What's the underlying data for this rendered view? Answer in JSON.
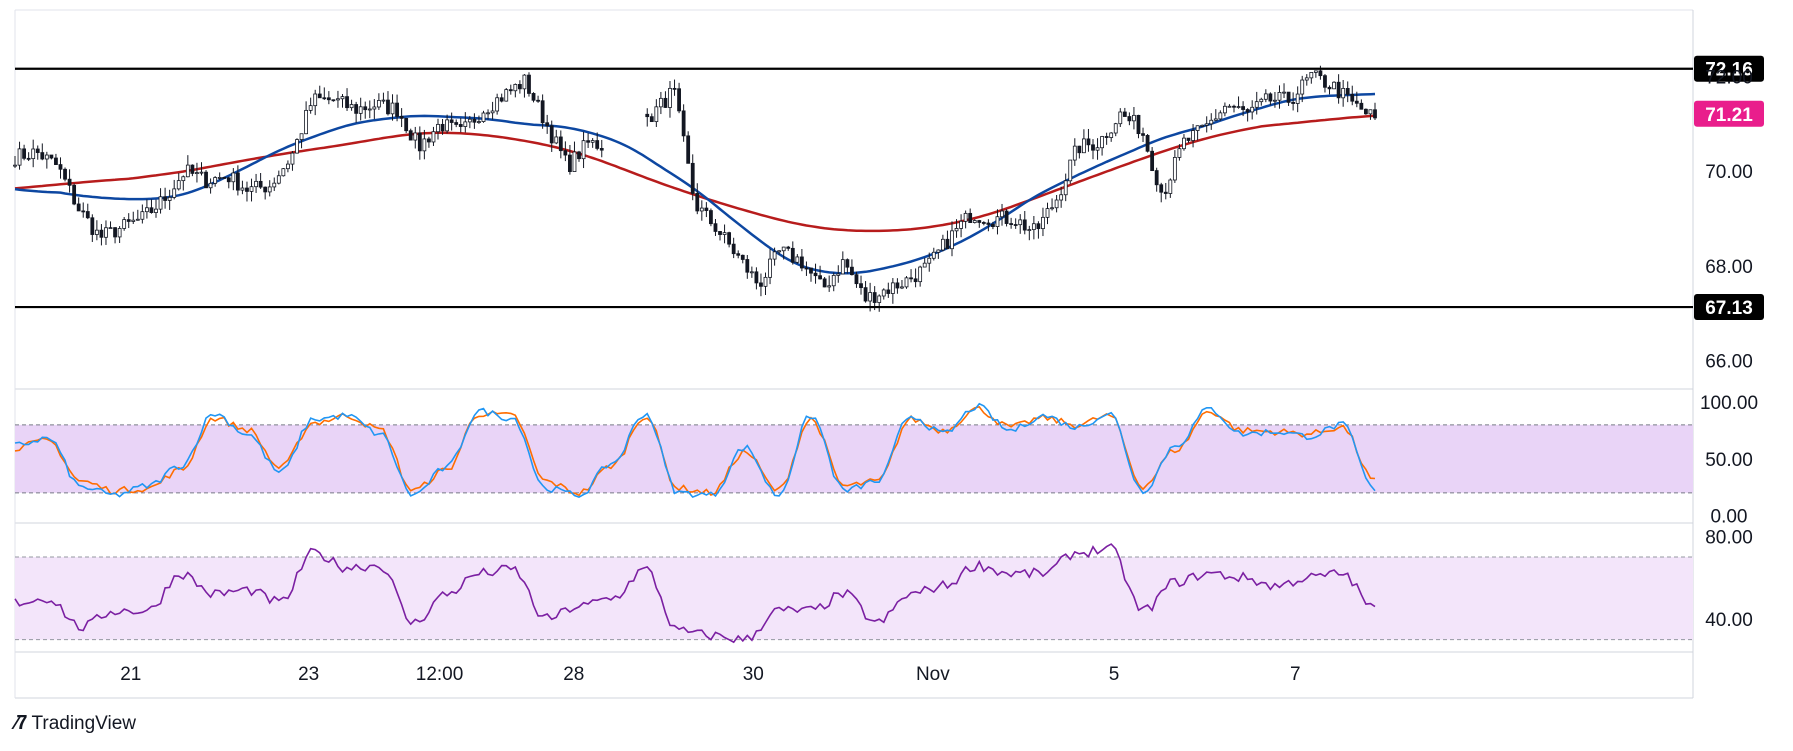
{
  "brand": {
    "logo_icon": "tradingview-logo-icon",
    "name": "TradingView"
  },
  "colors": {
    "candle": "#131722",
    "sma_fast": "#0d47a1",
    "sma_slow": "#b71c1c",
    "level_line": "#000000",
    "current_price_bg": "#e91e8c",
    "stoch_k": "#2196f3",
    "stoch_d": "#ff6d00",
    "stoch_band": "#e9d4f7",
    "rsi_line": "#7b1fa2",
    "rsi_band": "#f3e5fa"
  },
  "chart_data": [
    {
      "type": "candlestick",
      "panel": "price",
      "y_ticks": [
        "72.00",
        "70.00",
        "68.00",
        "66.00"
      ],
      "x_ticks": [
        "21",
        "23",
        "12:00",
        "28",
        "30",
        "Nov",
        "5",
        "7"
      ],
      "ylim": [
        65.4,
        73.4
      ],
      "levels": [
        {
          "label": "72.16",
          "value": 72.16
        },
        {
          "label": "67.13",
          "value": 67.13
        }
      ],
      "current_price": {
        "label": "71.21",
        "value": 71.21
      },
      "close_path": [
        70.3,
        70.4,
        70.1,
        69.2,
        68.6,
        68.8,
        69.0,
        69.4,
        70.0,
        69.8,
        69.9,
        69.6,
        69.7,
        70.3,
        71.5,
        71.5,
        71.3,
        71.4,
        71.3,
        70.5,
        71.0,
        70.8,
        71.3,
        71.6,
        71.9,
        71.0,
        70.1,
        70.6,
        70.5,
        70.4,
        71.2,
        71.7,
        69.3,
        68.8,
        68.2,
        67.6,
        68.3,
        68.1,
        67.5,
        68.1,
        67.3,
        67.5,
        67.7,
        68.0,
        68.6,
        69.1,
        69.0,
        69.0,
        68.7,
        69.4,
        70.5,
        70.6,
        71.2,
        70.9,
        69.5,
        70.6,
        70.9,
        71.4,
        71.2,
        71.5,
        71.5,
        72.0,
        71.8,
        71.4,
        71.1
      ]
    },
    {
      "type": "line",
      "panel": "stochastic",
      "y_ticks": [
        "100.00",
        "50.00",
        "0.00"
      ],
      "ylim": [
        -4,
        109
      ],
      "band": [
        20,
        80
      ],
      "series": [
        {
          "key": "k",
          "values": [
            62,
            68,
            25,
            18,
            26,
            44,
            90,
            72,
            38,
            85,
            88,
            72,
            18,
            42,
            92,
            86,
            24,
            18,
            46,
            90,
            20,
            18,
            60,
            18,
            88,
            22,
            30,
            88,
            72,
            96,
            75,
            88,
            78,
            90,
            22,
            62,
            94,
            72,
            74,
            70,
            80,
            22
          ]
        },
        {
          "key": "d",
          "values": [
            60,
            66,
            30,
            22,
            24,
            40,
            86,
            76,
            42,
            82,
            88,
            76,
            22,
            40,
            90,
            88,
            30,
            20,
            44,
            88,
            24,
            20,
            56,
            22,
            85,
            26,
            30,
            85,
            75,
            94,
            78,
            86,
            80,
            88,
            26,
            58,
            92,
            75,
            74,
            72,
            78,
            30
          ]
        }
      ]
    },
    {
      "type": "line",
      "panel": "rsi",
      "y_ticks": [
        "80.00",
        "40.00"
      ],
      "ylim": [
        25,
        85
      ],
      "band": [
        30,
        70
      ],
      "series": [
        {
          "key": "rsi",
          "values": [
            48,
            50,
            36,
            44,
            44,
            62,
            52,
            54,
            48,
            72,
            65,
            66,
            38,
            52,
            62,
            64,
            40,
            46,
            50,
            64,
            34,
            32,
            30,
            44,
            44,
            52,
            38,
            52,
            56,
            66,
            62,
            62,
            72,
            74,
            44,
            58,
            62,
            60,
            56,
            60,
            62,
            45
          ]
        }
      ]
    }
  ]
}
